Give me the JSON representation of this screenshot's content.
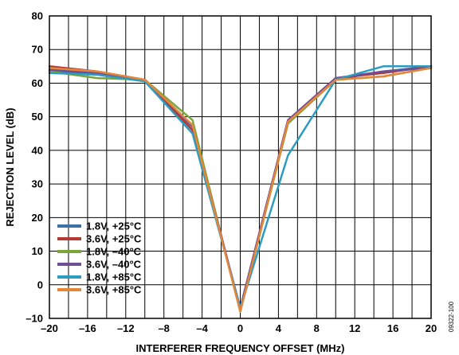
{
  "chart_data": {
    "type": "line",
    "xlabel": "INTERFERER FREQUENCY OFFSET (MHz)",
    "ylabel": "REJECTION LEVEL (dB)",
    "xlim": [
      -20,
      20
    ],
    "ylim": [
      -10,
      80
    ],
    "x_ticks": [
      -20,
      -16,
      -12,
      -8,
      -4,
      0,
      4,
      8,
      12,
      16,
      20
    ],
    "x_tick_labels": [
      "–20",
      "–16",
      "–12",
      "–8",
      "–4",
      "0",
      "4",
      "8",
      "12",
      "16",
      "20"
    ],
    "y_ticks": [
      -10,
      0,
      10,
      20,
      30,
      40,
      50,
      60,
      70,
      80
    ],
    "y_tick_labels": [
      "–10",
      "0",
      "10",
      "20",
      "30",
      "40",
      "50",
      "60",
      "70",
      "80"
    ],
    "grid": true,
    "legend_position": "bottom-left",
    "x": [
      -20,
      -15,
      -10,
      -5,
      0,
      5,
      10,
      15,
      20
    ],
    "series": [
      {
        "name": "1.8V, +25°C",
        "color": "#3d6fa8",
        "values": [
          63.5,
          63,
          61,
          46,
          -7,
          48,
          61,
          63.5,
          65
        ]
      },
      {
        "name": "3.6V, +25°C",
        "color": "#b13a34",
        "values": [
          65,
          63.5,
          61,
          46,
          -7,
          49,
          61.5,
          63,
          65
        ]
      },
      {
        "name": "1.8V, –40°C",
        "color": "#7aa63b",
        "values": [
          63.5,
          61.5,
          61,
          49,
          -8,
          48,
          61,
          62,
          64.5
        ]
      },
      {
        "name": "3.6V, –40°C",
        "color": "#6e4e96",
        "values": [
          64,
          63,
          61,
          47,
          -7,
          49,
          61.5,
          63.5,
          64.5
        ]
      },
      {
        "name": "1.8V, +85°C",
        "color": "#2e9cc0",
        "values": [
          63,
          62.5,
          60.5,
          45,
          -7,
          38.5,
          61,
          65,
          65
        ]
      },
      {
        "name": "3.6V, +85°C",
        "color": "#e5873b",
        "values": [
          64.5,
          63.5,
          61,
          47.5,
          -8,
          48.5,
          61,
          62,
          64.5
        ]
      }
    ]
  },
  "figure_id": "09322-100"
}
